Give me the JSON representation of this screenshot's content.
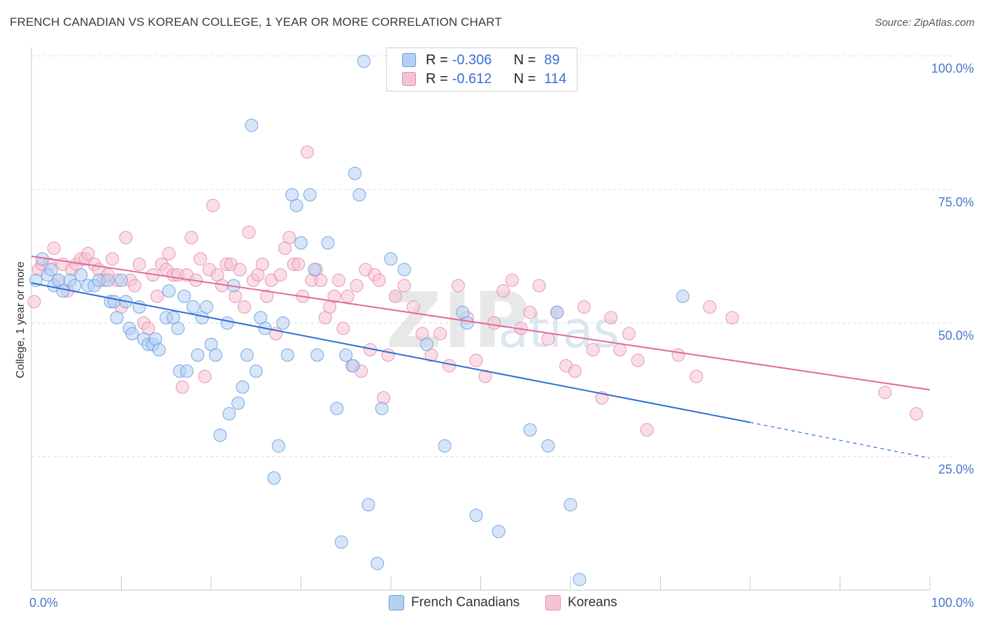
{
  "title": "FRENCH CANADIAN VS KOREAN COLLEGE, 1 YEAR OR MORE CORRELATION CHART",
  "source": "Source: ZipAtlas.com",
  "watermark": {
    "zip": "ZIP",
    "atlas": "atlas"
  },
  "colors": {
    "blue": "#6b9fe0",
    "blue_fill": "#b5d0f2",
    "blue_line": "#2a6fd4",
    "pink": "#e88cab",
    "pink_fill": "#f5c3d4",
    "pink_line": "#e26a96"
  },
  "legend": {
    "rows": [
      {
        "r_label": "R =",
        "r_value": "-0.306",
        "n_label": "N =",
        "n_value": "89"
      },
      {
        "r_label": "R =",
        "r_value": "-0.612",
        "n_label": "N =",
        "n_value": "114"
      }
    ]
  },
  "bottom_legend": [
    "French Canadians",
    "Koreans"
  ],
  "chart_data": {
    "type": "scatter",
    "title": "FRENCH CANADIAN VS KOREAN COLLEGE, 1 YEAR OR MORE CORRELATION CHART",
    "xlabel": "",
    "ylabel": "College, 1 year or more",
    "xlim": [
      0,
      100
    ],
    "ylim": [
      0,
      100
    ],
    "x_tick_labels": [
      "0.0%",
      "100.0%"
    ],
    "y_tick_labels": [
      "100.0%",
      "75.0%",
      "50.0%",
      "25.0%"
    ],
    "y_ticks": [
      100,
      75,
      50,
      25
    ],
    "grid": true,
    "legend_position": "top-center",
    "series": [
      {
        "name": "French Canadians",
        "color": "#6b9fe0",
        "trend": {
          "x0": 0,
          "y0": 57.5,
          "x1": 80,
          "y1": 31.4,
          "dashed_to_x": 100,
          "dashed_to_y": 24.7
        },
        "points": [
          [
            0.5,
            58
          ],
          [
            1.2,
            62
          ],
          [
            1.8,
            59
          ],
          [
            2.2,
            60
          ],
          [
            2.5,
            57
          ],
          [
            3.0,
            58
          ],
          [
            3.5,
            56
          ],
          [
            4.3,
            58
          ],
          [
            4.8,
            57
          ],
          [
            5.5,
            59
          ],
          [
            6.3,
            57
          ],
          [
            7.0,
            57
          ],
          [
            7.5,
            58
          ],
          [
            8.5,
            58
          ],
          [
            8.8,
            54
          ],
          [
            9.2,
            54
          ],
          [
            9.5,
            51
          ],
          [
            10.0,
            58
          ],
          [
            10.5,
            54
          ],
          [
            10.9,
            49
          ],
          [
            11.2,
            48
          ],
          [
            12.0,
            53
          ],
          [
            12.5,
            47
          ],
          [
            13.0,
            46
          ],
          [
            13.5,
            46
          ],
          [
            13.8,
            47
          ],
          [
            14.2,
            45
          ],
          [
            15.0,
            51
          ],
          [
            15.3,
            56
          ],
          [
            15.8,
            51
          ],
          [
            16.3,
            49
          ],
          [
            16.5,
            41
          ],
          [
            17.0,
            55
          ],
          [
            17.3,
            41
          ],
          [
            18.0,
            53
          ],
          [
            18.5,
            44
          ],
          [
            19.0,
            51
          ],
          [
            19.5,
            53
          ],
          [
            20.0,
            46
          ],
          [
            20.5,
            44
          ],
          [
            21.0,
            29
          ],
          [
            21.8,
            50
          ],
          [
            22.0,
            33
          ],
          [
            22.5,
            57
          ],
          [
            23.0,
            35
          ],
          [
            23.5,
            38
          ],
          [
            24.0,
            44
          ],
          [
            24.5,
            87
          ],
          [
            25.0,
            41
          ],
          [
            25.5,
            51
          ],
          [
            26.0,
            49
          ],
          [
            27.0,
            21
          ],
          [
            27.5,
            27
          ],
          [
            28.0,
            50
          ],
          [
            28.5,
            44
          ],
          [
            29.0,
            74
          ],
          [
            29.5,
            72
          ],
          [
            30.0,
            65
          ],
          [
            31.0,
            74
          ],
          [
            31.5,
            60
          ],
          [
            31.8,
            44
          ],
          [
            33.0,
            65
          ],
          [
            34.0,
            34
          ],
          [
            34.5,
            9
          ],
          [
            35.0,
            44
          ],
          [
            35.8,
            42
          ],
          [
            36.0,
            78
          ],
          [
            36.5,
            74
          ],
          [
            37.0,
            99
          ],
          [
            37.5,
            16
          ],
          [
            38.5,
            5
          ],
          [
            39.0,
            34
          ],
          [
            40.0,
            62
          ],
          [
            41.5,
            60
          ],
          [
            44.0,
            46
          ],
          [
            46.0,
            27
          ],
          [
            48.0,
            52
          ],
          [
            48.5,
            50
          ],
          [
            49.5,
            14
          ],
          [
            52.0,
            11
          ],
          [
            55.5,
            30
          ],
          [
            57.5,
            27
          ],
          [
            58.5,
            52
          ],
          [
            60.0,
            16
          ],
          [
            61.0,
            2
          ],
          [
            72.5,
            55
          ]
        ]
      },
      {
        "name": "Koreans",
        "color": "#e88cab",
        "trend": {
          "x0": 0,
          "y0": 62.5,
          "x1": 100,
          "y1": 37.5
        },
        "points": [
          [
            0.3,
            54
          ],
          [
            0.8,
            60
          ],
          [
            1.2,
            61
          ],
          [
            2.0,
            61
          ],
          [
            2.5,
            64
          ],
          [
            3.0,
            58
          ],
          [
            3.5,
            61
          ],
          [
            4.0,
            56
          ],
          [
            4.5,
            60
          ],
          [
            5.0,
            61
          ],
          [
            5.5,
            62
          ],
          [
            6.0,
            62
          ],
          [
            6.3,
            63
          ],
          [
            7.0,
            61
          ],
          [
            7.5,
            60
          ],
          [
            8.0,
            58
          ],
          [
            8.5,
            59
          ],
          [
            9.0,
            62
          ],
          [
            9.5,
            58
          ],
          [
            10.0,
            53
          ],
          [
            10.5,
            66
          ],
          [
            11.0,
            58
          ],
          [
            11.5,
            57
          ],
          [
            12.0,
            61
          ],
          [
            12.5,
            50
          ],
          [
            13.0,
            49
          ],
          [
            13.5,
            59
          ],
          [
            14.0,
            55
          ],
          [
            14.5,
            61
          ],
          [
            15.0,
            60
          ],
          [
            15.3,
            63
          ],
          [
            15.8,
            59
          ],
          [
            16.3,
            59
          ],
          [
            16.8,
            38
          ],
          [
            17.3,
            59
          ],
          [
            17.8,
            66
          ],
          [
            18.3,
            58
          ],
          [
            18.8,
            62
          ],
          [
            19.3,
            40
          ],
          [
            19.8,
            60
          ],
          [
            20.2,
            72
          ],
          [
            20.7,
            59
          ],
          [
            21.2,
            57
          ],
          [
            21.7,
            61
          ],
          [
            22.2,
            61
          ],
          [
            22.7,
            55
          ],
          [
            23.2,
            60
          ],
          [
            23.7,
            53
          ],
          [
            24.2,
            67
          ],
          [
            24.7,
            58
          ],
          [
            25.2,
            59
          ],
          [
            25.7,
            61
          ],
          [
            26.2,
            55
          ],
          [
            26.7,
            58
          ],
          [
            27.2,
            48
          ],
          [
            27.7,
            59
          ],
          [
            28.2,
            64
          ],
          [
            28.7,
            66
          ],
          [
            29.2,
            61
          ],
          [
            29.7,
            61
          ],
          [
            30.2,
            55
          ],
          [
            30.7,
            82
          ],
          [
            31.2,
            58
          ],
          [
            31.7,
            60
          ],
          [
            32.2,
            58
          ],
          [
            32.7,
            51
          ],
          [
            33.2,
            53
          ],
          [
            33.7,
            55
          ],
          [
            34.2,
            58
          ],
          [
            34.7,
            49
          ],
          [
            35.2,
            55
          ],
          [
            35.7,
            42
          ],
          [
            36.2,
            57
          ],
          [
            36.7,
            41
          ],
          [
            37.2,
            60
          ],
          [
            37.7,
            45
          ],
          [
            38.2,
            59
          ],
          [
            38.7,
            58
          ],
          [
            39.2,
            36
          ],
          [
            39.7,
            44
          ],
          [
            40.5,
            55
          ],
          [
            41.5,
            57
          ],
          [
            42.5,
            53
          ],
          [
            43.5,
            48
          ],
          [
            44.5,
            44
          ],
          [
            45.5,
            48
          ],
          [
            46.5,
            42
          ],
          [
            47.5,
            57
          ],
          [
            48.5,
            51
          ],
          [
            49.5,
            43
          ],
          [
            50.5,
            40
          ],
          [
            51.5,
            50
          ],
          [
            52.5,
            56
          ],
          [
            53.5,
            58
          ],
          [
            54.5,
            49
          ],
          [
            55.5,
            52
          ],
          [
            56.5,
            57
          ],
          [
            57.5,
            47
          ],
          [
            58.5,
            52
          ],
          [
            59.5,
            42
          ],
          [
            60.5,
            41
          ],
          [
            61.5,
            53
          ],
          [
            62.5,
            45
          ],
          [
            63.5,
            36
          ],
          [
            64.5,
            51
          ],
          [
            65.5,
            45
          ],
          [
            66.5,
            48
          ],
          [
            67.5,
            43
          ],
          [
            68.5,
            30
          ],
          [
            72.0,
            44
          ],
          [
            74.0,
            40
          ],
          [
            75.5,
            53
          ],
          [
            78.0,
            51
          ],
          [
            95.0,
            37
          ],
          [
            98.5,
            33
          ]
        ]
      }
    ]
  }
}
